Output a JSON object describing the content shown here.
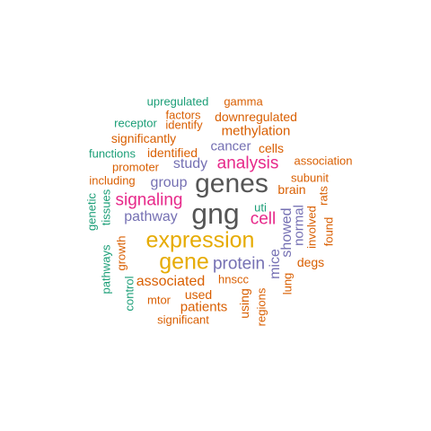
{
  "colors": {
    "background": "#ffffff",
    "green": "#1b9e77",
    "orange": "#d95f02",
    "purple": "#7570b3",
    "magenta": "#e7298a",
    "gold": "#e6ab02",
    "gray": "#555555"
  },
  "words": {
    "upregulated": {
      "text": "upregulated",
      "color": "#1b9e77"
    },
    "gamma": {
      "text": "gamma",
      "color": "#d95f02"
    },
    "factors": {
      "text": "factors",
      "color": "#d95f02"
    },
    "downregulated": {
      "text": "downregulated",
      "color": "#d95f02"
    },
    "receptor": {
      "text": "receptor",
      "color": "#1b9e77"
    },
    "identify": {
      "text": "identify",
      "color": "#d95f02"
    },
    "methylation": {
      "text": "methylation",
      "color": "#d95f02"
    },
    "significantly": {
      "text": "significantly",
      "color": "#d95f02"
    },
    "cancer": {
      "text": "cancer",
      "color": "#7570b3"
    },
    "cells": {
      "text": "cells",
      "color": "#d95f02"
    },
    "functions": {
      "text": "functions",
      "color": "#1b9e77"
    },
    "identified": {
      "text": "identified",
      "color": "#d95f02"
    },
    "association": {
      "text": "association",
      "color": "#d95f02"
    },
    "promoter": {
      "text": "promoter",
      "color": "#d95f02"
    },
    "study": {
      "text": "study",
      "color": "#7570b3"
    },
    "analysis": {
      "text": "analysis",
      "color": "#e7298a"
    },
    "subunit": {
      "text": "subunit",
      "color": "#d95f02"
    },
    "including": {
      "text": "including",
      "color": "#d95f02"
    },
    "group": {
      "text": "group",
      "color": "#7570b3"
    },
    "genes": {
      "text": "genes",
      "color": "#555555"
    },
    "brain": {
      "text": "brain",
      "color": "#d95f02"
    },
    "genetic": {
      "text": "genetic",
      "color": "#1b9e77"
    },
    "tissues": {
      "text": "tissues",
      "color": "#1b9e77"
    },
    "signaling": {
      "text": "signaling",
      "color": "#e7298a"
    },
    "rats": {
      "text": "rats",
      "color": "#d95f02"
    },
    "uti": {
      "text": "uti",
      "color": "#1b9e77"
    },
    "pathway": {
      "text": "pathway",
      "color": "#7570b3"
    },
    "gng": {
      "text": "gng",
      "color": "#555555"
    },
    "cell": {
      "text": "cell",
      "color": "#e7298a"
    },
    "normal": {
      "text": "normal",
      "color": "#7570b3"
    },
    "involved": {
      "text": "involved",
      "color": "#d95f02"
    },
    "showed": {
      "text": "showed",
      "color": "#7570b3"
    },
    "found": {
      "text": "found",
      "color": "#d95f02"
    },
    "expression": {
      "text": "expression",
      "color": "#e6ab02"
    },
    "growth": {
      "text": "growth",
      "color": "#d95f02"
    },
    "gene": {
      "text": "gene",
      "color": "#e6ab02"
    },
    "protein": {
      "text": "protein",
      "color": "#7570b3"
    },
    "mice": {
      "text": "mice",
      "color": "#7570b3"
    },
    "degs": {
      "text": "degs",
      "color": "#d95f02"
    },
    "pathways": {
      "text": "pathways",
      "color": "#1b9e77"
    },
    "associated": {
      "text": "associated",
      "color": "#d95f02"
    },
    "hnscc": {
      "text": "hnscc",
      "color": "#d95f02"
    },
    "lung": {
      "text": "lung",
      "color": "#d95f02"
    },
    "used": {
      "text": "used",
      "color": "#d95f02"
    },
    "control": {
      "text": "control",
      "color": "#1b9e77"
    },
    "mtor": {
      "text": "mtor",
      "color": "#d95f02"
    },
    "using": {
      "text": "using",
      "color": "#d95f02"
    },
    "regions": {
      "text": "regions",
      "color": "#d95f02"
    },
    "patients": {
      "text": "patients",
      "color": "#d95f02"
    },
    "significant": {
      "text": "significant",
      "color": "#d95f02"
    }
  }
}
